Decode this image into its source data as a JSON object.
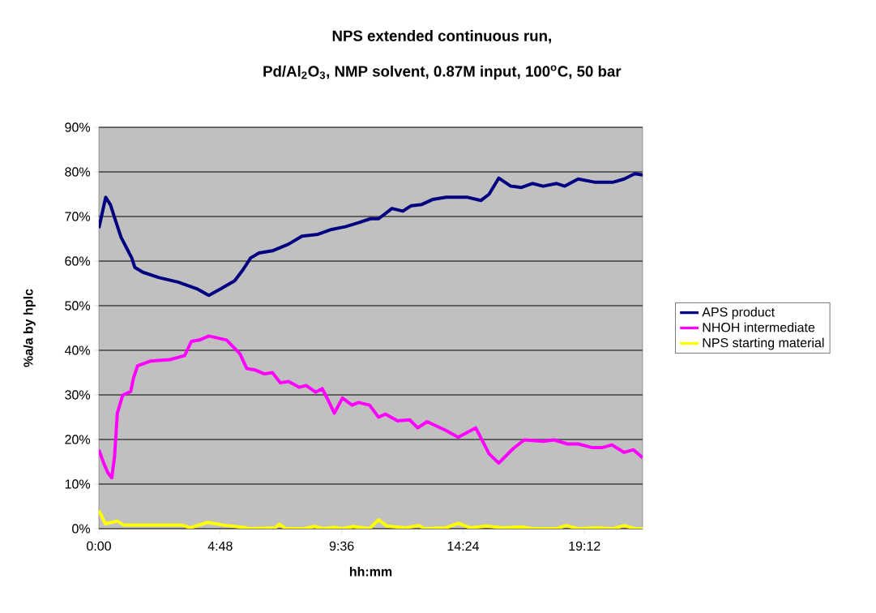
{
  "chart_data": {
    "type": "line",
    "title": "NPS extended continuous run,",
    "subtitle": "Pd/Al$_{2}$O$_{3}$, NMP solvent, 0.87M input, 100$^{o}$C, 50 bar",
    "xlabel": "hh:mm",
    "ylabel": "%a/a by hplc",
    "xlim": [
      0,
      21.5
    ],
    "ylim": [
      0,
      90
    ],
    "xticks": [
      {
        "value": 0,
        "label": "0:00"
      },
      {
        "value": 4.8,
        "label": "4:48"
      },
      {
        "value": 9.6,
        "label": "9:36"
      },
      {
        "value": 14.4,
        "label": "14:24"
      },
      {
        "value": 19.2,
        "label": "19:12"
      }
    ],
    "yticks": [
      {
        "value": 0,
        "label": "0%"
      },
      {
        "value": 10,
        "label": "10%"
      },
      {
        "value": 20,
        "label": "20%"
      },
      {
        "value": 30,
        "label": "30%"
      },
      {
        "value": 40,
        "label": "40%"
      },
      {
        "value": 50,
        "label": "50%"
      },
      {
        "value": 60,
        "label": "60%"
      },
      {
        "value": 70,
        "label": "70%"
      },
      {
        "value": 80,
        "label": "80%"
      },
      {
        "value": 90,
        "label": "90%"
      }
    ],
    "grid": "y",
    "legend": "right",
    "marker": "none",
    "line_style": "solid",
    "series": [
      {
        "name": "APS product",
        "color": "#000080",
        "x": [
          0,
          0.27,
          0.46,
          0.67,
          0.88,
          1.1,
          1.3,
          1.42,
          1.74,
          2.38,
          3.13,
          3.87,
          4.35,
          4.83,
          5.37,
          5.69,
          6.0,
          6.33,
          6.86,
          7.5,
          8.03,
          8.67,
          9.2,
          9.74,
          10.27,
          10.74,
          11.06,
          11.59,
          12.02,
          12.34,
          12.77,
          13.19,
          13.73,
          14.58,
          15.11,
          15.43,
          15.81,
          16.29,
          16.71,
          17.14,
          17.57,
          18.1,
          18.42,
          18.95,
          19.6,
          20.34,
          20.77,
          21.19,
          21.5
        ],
        "values": [
          67.4,
          74.3,
          72.6,
          68.9,
          65.3,
          62.9,
          60.7,
          58.6,
          57.5,
          56.3,
          55.3,
          53.8,
          52.3,
          53.8,
          55.6,
          58.0,
          60.7,
          61.8,
          62.3,
          63.8,
          65.6,
          66.0,
          67.1,
          67.7,
          68.6,
          69.5,
          69.5,
          71.8,
          71.2,
          72.4,
          72.7,
          73.8,
          74.3,
          74.3,
          73.6,
          75.0,
          78.6,
          76.8,
          76.5,
          77.4,
          76.8,
          77.4,
          76.8,
          78.4,
          77.7,
          77.7,
          78.4,
          79.6,
          79.3
        ]
      },
      {
        "name": "NHOH intermediate",
        "color": "#ff00ff",
        "x": [
          0,
          0.19,
          0.35,
          0.51,
          0.62,
          0.73,
          0.94,
          1.26,
          1.37,
          1.53,
          2.06,
          2.81,
          3.39,
          3.66,
          3.98,
          4.35,
          5.05,
          5.58,
          5.85,
          6.17,
          6.54,
          6.86,
          7.18,
          7.5,
          7.93,
          8.19,
          8.57,
          8.83,
          9.05,
          9.31,
          9.63,
          10.01,
          10.27,
          10.7,
          11.06,
          11.33,
          11.81,
          12.29,
          12.61,
          12.98,
          13.73,
          14.21,
          14.9,
          15.43,
          15.81,
          16.39,
          16.82,
          17.57,
          18.0,
          18.53,
          18.95,
          19.49,
          19.92,
          20.29,
          20.77,
          21.14,
          21.5
        ],
        "values": [
          17.7,
          14.7,
          12.6,
          11.4,
          16.2,
          25.9,
          29.9,
          30.8,
          33.8,
          36.5,
          37.6,
          37.9,
          38.8,
          42.0,
          42.3,
          43.2,
          42.3,
          39.2,
          35.9,
          35.6,
          34.7,
          35.0,
          32.7,
          33.0,
          31.7,
          32.1,
          30.6,
          31.4,
          29.0,
          25.9,
          29.3,
          27.7,
          28.3,
          27.7,
          25.0,
          25.7,
          24.2,
          24.4,
          22.6,
          24.0,
          22.0,
          20.5,
          22.6,
          16.8,
          14.7,
          18.0,
          19.9,
          19.6,
          19.9,
          19.0,
          19.0,
          18.2,
          18.2,
          18.8,
          17.1,
          17.7,
          15.9
        ]
      },
      {
        "name": "NPS starting material",
        "color": "#ffff00",
        "x": [
          0,
          0.25,
          0.73,
          0.99,
          3.29,
          3.61,
          4.3,
          5.05,
          5.69,
          6.0,
          6.97,
          7.13,
          7.39,
          8.14,
          8.51,
          8.89,
          9.31,
          9.63,
          10.06,
          10.7,
          11.06,
          11.38,
          12.13,
          12.66,
          12.87,
          13.73,
          14.21,
          14.69,
          15.33,
          15.97,
          16.71,
          17.14,
          18.1,
          18.47,
          18.95,
          19.7,
          20.34,
          20.77,
          21.19,
          21.5
        ],
        "values": [
          4.1,
          1.1,
          1.7,
          0.8,
          0.8,
          0.2,
          1.4,
          0.7,
          0.3,
          0,
          0.2,
          1.0,
          0,
          0,
          0.5,
          0,
          0.3,
          0,
          0.5,
          0,
          2.0,
          0.6,
          0.2,
          0.7,
          0,
          0.2,
          1.2,
          0.2,
          0.6,
          0.2,
          0.4,
          0,
          0,
          0.7,
          0,
          0.2,
          0,
          0.7,
          0,
          0
        ]
      }
    ]
  }
}
